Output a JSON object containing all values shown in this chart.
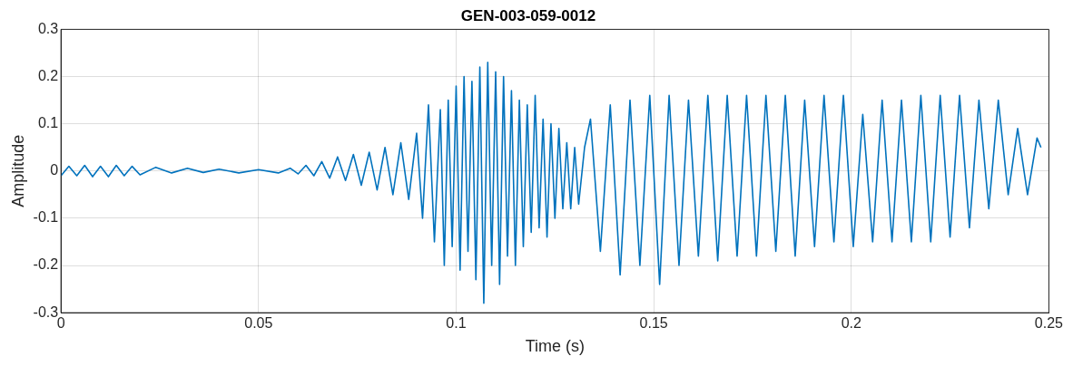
{
  "chart_data": {
    "type": "line",
    "title": "GEN-003-059-0012",
    "xlabel": "Time (s)",
    "ylabel": "Amplitude",
    "xlim": [
      0,
      0.25
    ],
    "xticks": [
      0,
      0.05,
      0.1,
      0.15,
      0.2,
      0.25
    ],
    "ylim": [
      -0.3,
      0.3
    ],
    "yticks": [
      -0.3,
      -0.2,
      -0.1,
      0,
      0.1,
      0.2,
      0.3
    ],
    "grid": true,
    "legend": false,
    "marker": "none",
    "line_style": "solid",
    "series": [
      {
        "color": "#0072bd",
        "x": [
          0,
          0.002,
          0.004,
          0.006,
          0.008,
          0.01,
          0.012,
          0.014,
          0.016,
          0.018,
          0.02,
          0.024,
          0.028,
          0.032,
          0.036,
          0.04,
          0.045,
          0.05,
          0.055,
          0.058,
          0.06,
          0.062,
          0.064,
          0.066,
          0.068,
          0.07,
          0.072,
          0.074,
          0.076,
          0.078,
          0.08,
          0.082,
          0.084,
          0.086,
          0.088,
          0.09,
          0.0915,
          0.093,
          0.0945,
          0.096,
          0.097,
          0.098,
          0.099,
          0.1,
          0.101,
          0.102,
          0.103,
          0.104,
          0.105,
          0.106,
          0.107,
          0.108,
          0.109,
          0.11,
          0.111,
          0.112,
          0.113,
          0.114,
          0.115,
          0.116,
          0.117,
          0.118,
          0.119,
          0.12,
          0.121,
          0.122,
          0.123,
          0.124,
          0.125,
          0.126,
          0.127,
          0.128,
          0.129,
          0.13,
          0.131,
          0.1325,
          0.134,
          0.1365,
          0.139,
          0.1415,
          0.144,
          0.1465,
          0.149,
          0.1515,
          0.1539,
          0.1564,
          0.1588,
          0.1613,
          0.1637,
          0.1662,
          0.1686,
          0.1711,
          0.1735,
          0.176,
          0.1784,
          0.1809,
          0.1833,
          0.1858,
          0.1882,
          0.1907,
          0.1931,
          0.1956,
          0.198,
          0.2005,
          0.2029,
          0.2054,
          0.2078,
          0.2103,
          0.2127,
          0.2152,
          0.2176,
          0.2201,
          0.2225,
          0.225,
          0.2274,
          0.2299,
          0.2323,
          0.2348,
          0.2372,
          0.2397,
          0.2421,
          0.2446,
          0.247,
          0.248
        ],
        "values": [
          -0.01,
          0.01,
          -0.01,
          0.012,
          -0.012,
          0.01,
          -0.012,
          0.012,
          -0.01,
          0.01,
          -0.008,
          0.008,
          -0.004,
          0.006,
          -0.003,
          0.004,
          -0.004,
          0.003,
          -0.004,
          0.006,
          -0.006,
          0.012,
          -0.01,
          0.02,
          -0.015,
          0.03,
          -0.02,
          0.035,
          -0.03,
          0.04,
          -0.04,
          0.05,
          -0.05,
          0.06,
          -0.06,
          0.08,
          -0.1,
          0.14,
          -0.15,
          0.13,
          -0.2,
          0.15,
          -0.16,
          0.18,
          -0.21,
          0.2,
          -0.17,
          0.19,
          -0.23,
          0.22,
          -0.28,
          0.23,
          -0.2,
          0.21,
          -0.24,
          0.2,
          -0.18,
          0.17,
          -0.2,
          0.15,
          -0.16,
          0.14,
          -0.13,
          0.16,
          -0.12,
          0.11,
          -0.14,
          0.1,
          -0.1,
          0.09,
          -0.08,
          0.06,
          -0.08,
          0.05,
          -0.07,
          0.05,
          0.11,
          -0.17,
          0.14,
          -0.22,
          0.15,
          -0.2,
          0.16,
          -0.24,
          0.16,
          -0.2,
          0.15,
          -0.18,
          0.16,
          -0.19,
          0.16,
          -0.18,
          0.16,
          -0.18,
          0.16,
          -0.17,
          0.16,
          -0.18,
          0.15,
          -0.16,
          0.16,
          -0.15,
          0.16,
          -0.16,
          0.12,
          -0.15,
          0.15,
          -0.15,
          0.15,
          -0.15,
          0.16,
          -0.15,
          0.16,
          -0.14,
          0.16,
          -0.12,
          0.15,
          -0.08,
          0.15,
          -0.05,
          0.09,
          -0.05,
          0.07,
          0.05
        ]
      }
    ]
  }
}
